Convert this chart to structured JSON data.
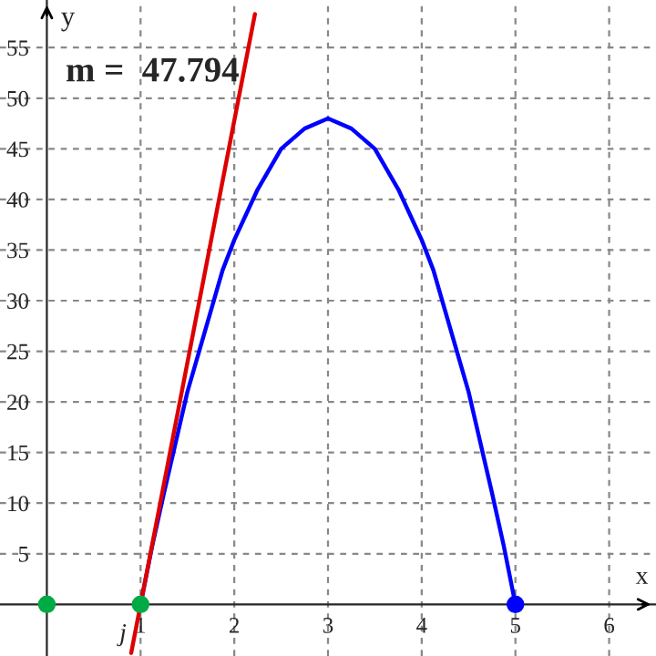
{
  "chart_data": {
    "type": "line",
    "xlabel": "x",
    "ylabel": "y",
    "xlim": [
      -0.5,
      6.5
    ],
    "ylim": [
      -5.1,
      59.7
    ],
    "xticks": [
      1,
      2,
      3,
      4,
      5,
      6
    ],
    "yticks": [
      5,
      10,
      15,
      20,
      25,
      30,
      35,
      40,
      45,
      50,
      55
    ],
    "grid": true,
    "line_style": "solid",
    "series": [
      {
        "color": "#0000ff",
        "x": [
          1,
          1.125,
          1.25,
          1.375,
          1.5,
          1.625,
          1.75,
          1.875,
          2,
          2.25,
          2.5,
          2.75,
          3,
          3.25,
          3.5,
          3.75,
          4,
          4.125,
          4.25,
          4.375,
          4.5,
          4.625,
          4.75,
          4.875,
          5
        ],
        "values": [
          0,
          5.8,
          11,
          16,
          21,
          25,
          29,
          33,
          36,
          41,
          45,
          47,
          48,
          47,
          45,
          41,
          36,
          33,
          29,
          25,
          21,
          16,
          11,
          5.8,
          0
        ]
      },
      {
        "color": "#dd0000",
        "x": [
          0.9,
          2.22
        ],
        "values": [
          -4.8,
          58.3
        ]
      },
      {
        "type": "scatter",
        "color": "#00aa44",
        "x": [
          0,
          1
        ],
        "values": [
          0,
          0
        ],
        "marker": "circle"
      },
      {
        "type": "scatter",
        "color": "#0000ff",
        "x": [
          5
        ],
        "values": [
          0
        ],
        "marker": "circle"
      }
    ],
    "annotations": [
      "m =  47.794",
      {
        "text": "j",
        "x": 0.85,
        "y": -3
      }
    ]
  }
}
